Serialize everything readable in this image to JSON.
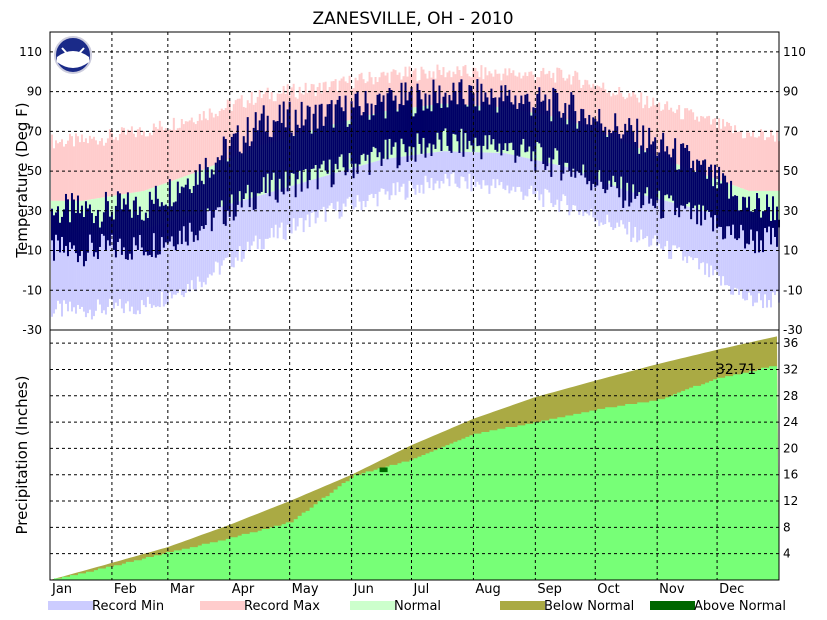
{
  "chart_data": [
    {
      "type": "area",
      "title": "ZANESVILLE, OH - 2010",
      "ylabel": "Temperature (Deg F)",
      "ylim": [
        -30,
        120
      ],
      "yticks": [
        -30,
        -10,
        10,
        30,
        50,
        70,
        90,
        110
      ],
      "months": [
        "Jan",
        "Feb",
        "Mar",
        "Apr",
        "May",
        "Jun",
        "Jul",
        "Aug",
        "Sep",
        "Oct",
        "Nov",
        "Dec"
      ],
      "monthly": {
        "record_max": [
          65,
          70,
          78,
          88,
          92,
          98,
          100,
          99,
          98,
          88,
          78,
          68
        ],
        "record_min": [
          -20,
          -18,
          -5,
          15,
          28,
          38,
          45,
          42,
          33,
          20,
          5,
          -15
        ],
        "normal_high": [
          35,
          40,
          50,
          63,
          72,
          80,
          84,
          82,
          76,
          64,
          51,
          40
        ],
        "normal_low": [
          19,
          21,
          29,
          38,
          47,
          56,
          60,
          59,
          52,
          40,
          32,
          24
        ],
        "observed_high": [
          30,
          32,
          50,
          75,
          78,
          85,
          88,
          87,
          82,
          70,
          55,
          32
        ],
        "observed_low": [
          10,
          12,
          22,
          40,
          48,
          58,
          64,
          62,
          52,
          38,
          28,
          15
        ]
      },
      "colors": {
        "record_min": "#ccccff",
        "record_max": "#ffcccc",
        "normal": "#ccffcc",
        "observed": "#000066"
      }
    },
    {
      "type": "area",
      "ylabel": "Precipitation (Inches)",
      "ylim": [
        0,
        38
      ],
      "yticks": [
        4,
        8,
        12,
        16,
        20,
        24,
        28,
        32,
        36
      ],
      "annotation": "32.71",
      "x_day": [
        0,
        31,
        59,
        90,
        120,
        151,
        181,
        212,
        243,
        273,
        304,
        334,
        365
      ],
      "normal_cumulative": [
        0,
        2.6,
        5.0,
        8.4,
        12.0,
        16.0,
        20.5,
        24.5,
        27.8,
        30.3,
        32.8,
        35.0,
        37.1
      ],
      "observed_cumulative": [
        0,
        2.1,
        4.2,
        6.4,
        8.8,
        15.8,
        18.3,
        22.2,
        24.0,
        25.9,
        27.4,
        30.7,
        32.71
      ],
      "colors": {
        "observed": "#77ff77",
        "below_normal": "#aaaa44",
        "above_normal": "#006600"
      }
    }
  ],
  "legend": [
    {
      "label": "Record Min",
      "color": "#ccccff"
    },
    {
      "label": "Record Max",
      "color": "#ffcccc"
    },
    {
      "label": "Normal",
      "color": "#ccffcc"
    },
    {
      "label": "Below Normal",
      "color": "#aaaa44"
    },
    {
      "label": "Above Normal",
      "color": "#006600"
    }
  ],
  "logo_text": "NOAA"
}
